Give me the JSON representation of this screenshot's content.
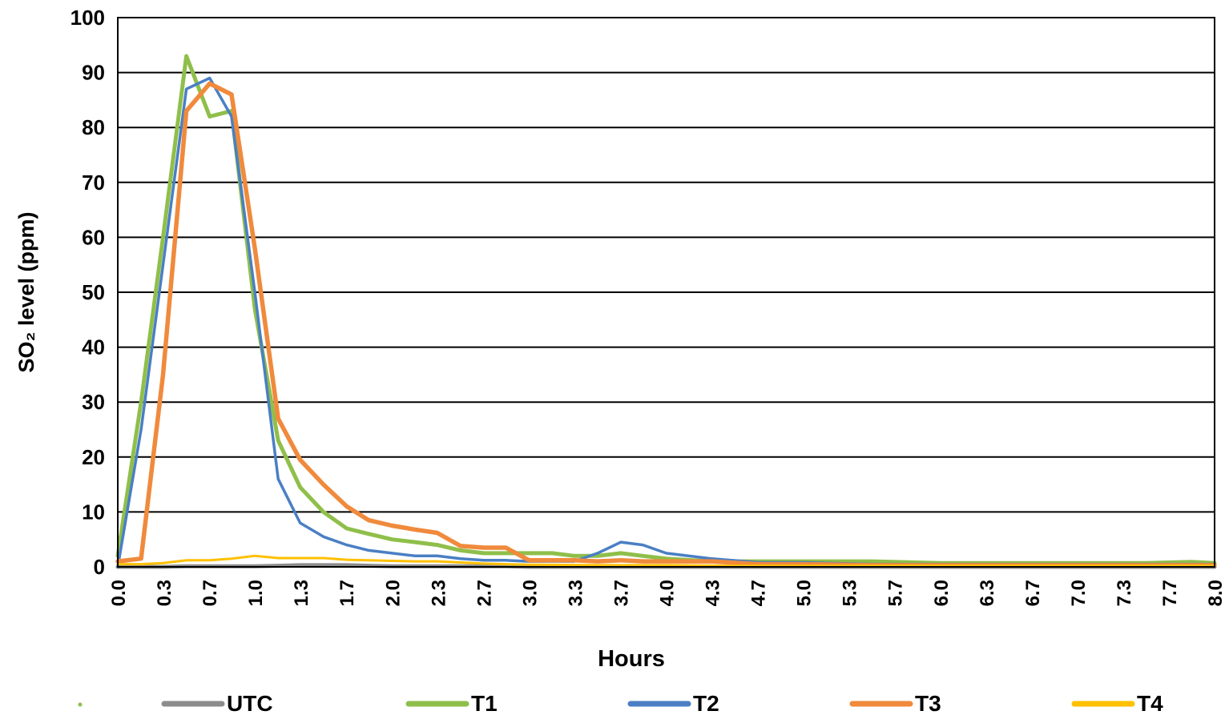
{
  "chart_data": {
    "type": "line",
    "title": "",
    "xlabel": "Hours",
    "ylabel": "SO₂ level (ppm)",
    "ylim": [
      0,
      100
    ],
    "xlim": [
      0,
      8
    ],
    "grid": true,
    "legend_position": "bottom",
    "y_ticks": [
      "0",
      "10",
      "20",
      "30",
      "40",
      "50",
      "60",
      "70",
      "80",
      "90",
      "100"
    ],
    "x_ticks": [
      "0.0",
      "0.3",
      "0.7",
      "1.0",
      "1.3",
      "1.7",
      "2.0",
      "2.3",
      "2.7",
      "3.0",
      "3.3",
      "3.7",
      "4.0",
      "4.3",
      "4.7",
      "5.0",
      "5.3",
      "5.7",
      "6.0",
      "6.3",
      "6.7",
      "7.0",
      "7.3",
      "7.7",
      "8.0"
    ],
    "legend_entries": [
      "UTC",
      "T1",
      "T2",
      "T3",
      "T4"
    ],
    "series": [
      {
        "name": "UTC",
        "color": "#8c8c8c",
        "x": [
          0.0,
          0.17,
          0.33,
          0.5,
          0.67,
          0.83,
          1.0,
          1.17,
          1.33,
          1.5,
          1.67,
          1.83,
          2.0,
          2.17,
          2.33,
          2.5,
          2.67,
          2.83,
          3.0,
          3.5,
          4.0,
          5.0,
          6.0,
          7.0,
          8.0
        ],
        "y": [
          0.0,
          0.0,
          0.0,
          0.1,
          0.1,
          0.1,
          0.1,
          0.2,
          0.3,
          0.3,
          0.3,
          0.2,
          0.1,
          0.1,
          0.1,
          0.1,
          0.1,
          0.1,
          0.0,
          0.0,
          0.0,
          0.0,
          0.0,
          0.0,
          0.0
        ]
      },
      {
        "name": "T1",
        "color": "#8fbf4a",
        "x": [
          0.0,
          0.17,
          0.33,
          0.5,
          0.67,
          0.83,
          1.0,
          1.17,
          1.33,
          1.5,
          1.67,
          1.83,
          2.0,
          2.17,
          2.33,
          2.5,
          2.67,
          2.83,
          3.0,
          3.17,
          3.33,
          3.5,
          3.67,
          3.83,
          4.0,
          4.33,
          4.67,
          5.0,
          5.5,
          6.0,
          6.5,
          7.0,
          7.5,
          7.83,
          8.0
        ],
        "y": [
          2,
          30,
          60,
          93,
          82,
          83,
          47,
          23,
          14.5,
          10,
          7,
          6,
          5,
          4.5,
          4,
          3,
          2.5,
          2.5,
          2.5,
          2.5,
          2,
          2,
          2.5,
          2,
          1.5,
          1,
          1,
          1,
          1,
          0.7,
          0.7,
          0.7,
          0.7,
          0.9,
          0.7
        ]
      },
      {
        "name": "T2",
        "color": "#4a7fc4",
        "x": [
          0.0,
          0.17,
          0.33,
          0.5,
          0.67,
          0.83,
          1.0,
          1.17,
          1.33,
          1.5,
          1.67,
          1.83,
          2.0,
          2.17,
          2.33,
          2.5,
          2.67,
          2.83,
          3.0,
          3.17,
          3.33,
          3.5,
          3.67,
          3.83,
          4.0,
          4.33,
          4.67,
          5.0,
          5.5,
          6.0,
          6.5,
          7.0,
          7.5,
          8.0
        ],
        "y": [
          0,
          25,
          55,
          87,
          89,
          82,
          50,
          16,
          8,
          5.5,
          4,
          3,
          2.5,
          2,
          2,
          1.5,
          1.2,
          1.2,
          1,
          1,
          1,
          2.5,
          4.5,
          4,
          2.5,
          1.5,
          0.8,
          0.8,
          0.5,
          0.5,
          0.5,
          0.5,
          0.5,
          0.5
        ]
      },
      {
        "name": "T3",
        "color": "#f08a3c",
        "x": [
          0.0,
          0.17,
          0.33,
          0.5,
          0.67,
          0.83,
          1.0,
          1.17,
          1.33,
          1.5,
          1.67,
          1.83,
          2.0,
          2.17,
          2.33,
          2.5,
          2.67,
          2.83,
          3.0,
          3.17,
          3.33,
          3.5,
          3.67,
          3.83,
          4.0,
          4.33,
          4.67,
          5.0,
          5.5,
          6.0,
          6.5,
          7.0,
          7.5,
          8.0
        ],
        "y": [
          1,
          1.5,
          35,
          83,
          88,
          86,
          58,
          27,
          19.5,
          15,
          11,
          8.5,
          7.5,
          6.8,
          6.2,
          3.8,
          3.5,
          3.5,
          1.2,
          1.2,
          1.2,
          1,
          1.2,
          1,
          1,
          1,
          0.5,
          0.5,
          0.3,
          0.3,
          0.3,
          0.3,
          0.3,
          0.3
        ]
      },
      {
        "name": "T4",
        "color": "#ffc000",
        "x": [
          0.0,
          0.17,
          0.33,
          0.5,
          0.67,
          0.83,
          1.0,
          1.17,
          1.33,
          1.5,
          1.67,
          1.83,
          2.0,
          2.17,
          2.33,
          2.5,
          2.67,
          2.83,
          3.0,
          3.5,
          4.0,
          4.5,
          5.0,
          5.5,
          6.0,
          6.5,
          7.0,
          7.5,
          8.0
        ],
        "y": [
          0.5,
          0.5,
          0.7,
          1.2,
          1.2,
          1.5,
          2.0,
          1.6,
          1.6,
          1.6,
          1.3,
          1.2,
          1.1,
          1.0,
          1.0,
          0.8,
          0.6,
          0.5,
          0.4,
          0.3,
          0.3,
          0.2,
          0.2,
          0.2,
          0.2,
          0.2,
          0.2,
          0.2,
          0.2
        ]
      }
    ]
  }
}
